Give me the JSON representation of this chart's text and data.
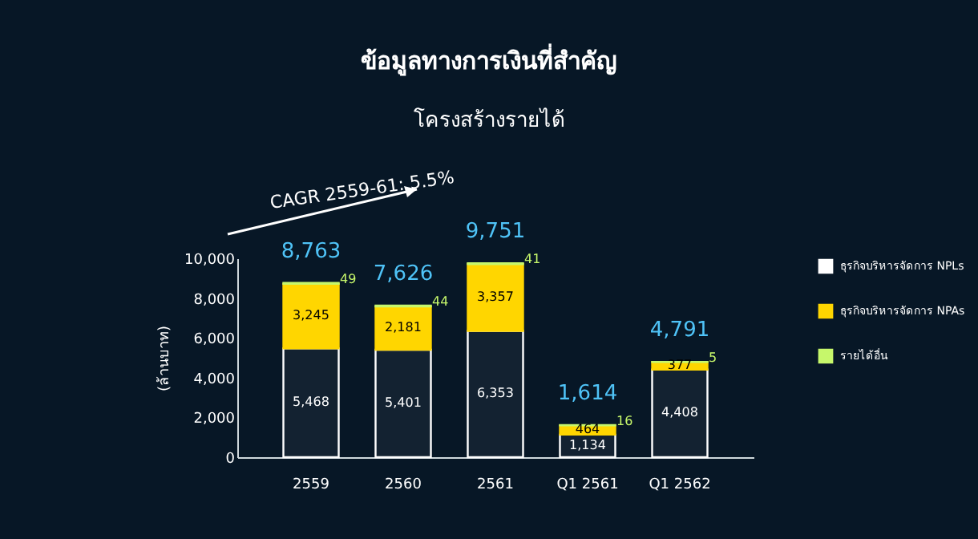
{
  "chart_data": {
    "type": "bar",
    "title": "ข้อมูลทางการเงินที่สำคัญ",
    "subtitle": "โครงสร้างรายได้",
    "ylabel": "(ล้านบาท)",
    "categories": [
      "2559",
      "2560",
      "2561",
      "Q1 2561",
      "Q1 2562"
    ],
    "stacked": true,
    "series": [
      {
        "name": "ธุรกิจบริหารจัดการ NPLs",
        "color": "#ffffff",
        "values": [
          5468,
          5401,
          6353,
          1134,
          4408
        ],
        "value_labels": [
          "5,468",
          "5,401",
          "6,353",
          "1,134",
          "4,408"
        ]
      },
      {
        "name": "ธุรกิจบริหารจัดการ NPAs",
        "color": "#ffd600",
        "values": [
          3245,
          2181,
          3357,
          464,
          377
        ],
        "value_labels": [
          "3,245",
          "2,181",
          "3,357",
          "464",
          "377"
        ]
      },
      {
        "name": "รายได้อื่น",
        "color": "#c6f76b",
        "values": [
          49,
          44,
          41,
          16,
          5
        ],
        "value_labels": [
          "49",
          "44",
          "41",
          "16",
          "5"
        ]
      }
    ],
    "totals": [
      "8,763",
      "7,626",
      "9,751",
      "1,614",
      "4,791"
    ],
    "ylim": [
      0,
      10000
    ],
    "yticks": [
      0,
      {
        "value": 2000,
        "label": "2,000"
      },
      {
        "value": 4000,
        "label": "4,000"
      },
      {
        "value": 6000,
        "label": "6,000"
      },
      {
        "value": 8000,
        "label": "8,000"
      },
      {
        "value": 10000,
        "label": "10,000"
      }
    ],
    "grid": false,
    "legend": "right",
    "annotations": [
      "CAGR 2559-61: 5.5%"
    ]
  }
}
